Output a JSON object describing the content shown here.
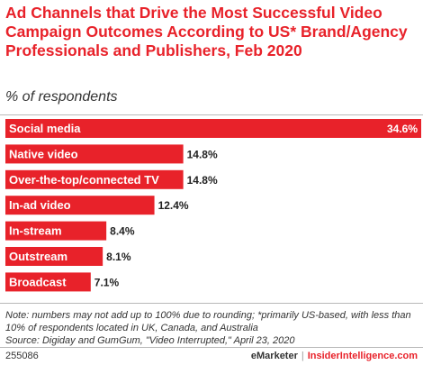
{
  "title": "Ad Channels that Drive the Most Successful Video Campaign Outcomes According to US* Brand/Agency Professionals and Publishers, Feb 2020",
  "subtitle": "% of respondents",
  "chart_data": {
    "type": "bar",
    "orientation": "horizontal",
    "categories": [
      "Social media",
      "Native video",
      "Over-the-top/connected TV",
      "In-ad video",
      "In-stream",
      "Outstream",
      "Broadcast"
    ],
    "values": [
      34.6,
      14.8,
      14.8,
      12.4,
      8.4,
      8.1,
      7.1
    ],
    "value_labels": [
      "34.6%",
      "14.8%",
      "14.8%",
      "12.4%",
      "8.4%",
      "8.1%",
      "7.1%"
    ],
    "bar_color": "#e8222a",
    "label_color": "#ffffff",
    "value_label_color": "#222222"
  },
  "notes": {
    "line1": "Note: numbers may not add up to 100% due to rounding; *primarily US-based, with less than",
    "line2": "10% of respondents located in UK, Canada, and Australia",
    "line3": "Source: Digiday and GumGum, \"Video Interrupted,\" April 23, 2020"
  },
  "footer": {
    "id": "255086",
    "brand": "eMarketer",
    "separator": "|",
    "site": "InsiderIntelligence.com"
  }
}
